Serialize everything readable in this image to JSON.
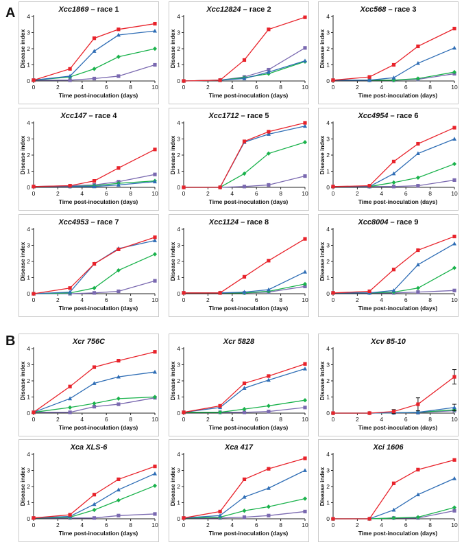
{
  "section_labels": {
    "a": "A",
    "b": "B"
  },
  "colors": {
    "red": "#e8232b",
    "blue": "#2e6db5",
    "green": "#19b24b",
    "purple": "#7a69b0"
  },
  "chart_data": [
    {
      "type": "line",
      "panel": "A",
      "title_italic": "Xcc1869",
      "title_rest": " – race 1",
      "xlabel": "Time post-inoculation (days)",
      "ylabel": "Disease index",
      "xlim": [
        0,
        10
      ],
      "ylim": [
        0,
        4
      ],
      "x": [
        0,
        3,
        5,
        7,
        10
      ],
      "series": [
        {
          "color": "red",
          "marker": "square",
          "values": [
            0.05,
            0.75,
            2.65,
            3.2,
            3.55
          ]
        },
        {
          "color": "blue",
          "marker": "triangle",
          "values": [
            0.05,
            0.3,
            1.85,
            2.85,
            3.1
          ]
        },
        {
          "color": "green",
          "marker": "diamond",
          "values": [
            0.05,
            0.25,
            0.75,
            1.5,
            2.0
          ]
        },
        {
          "color": "purple",
          "marker": "square",
          "values": [
            0.05,
            0.05,
            0.15,
            0.3,
            1.0
          ]
        }
      ]
    },
    {
      "type": "line",
      "panel": "A",
      "title_italic": "Xcc12824",
      "title_rest": " – race 2",
      "xlabel": "Time post-inoculation (days)",
      "ylabel": "Disease index",
      "xlim": [
        0,
        10
      ],
      "ylim": [
        0,
        4
      ],
      "x": [
        0,
        3,
        5,
        7,
        10
      ],
      "series": [
        {
          "color": "red",
          "marker": "square",
          "values": [
            0,
            0.05,
            1.3,
            3.2,
            3.95
          ]
        },
        {
          "color": "blue",
          "marker": "triangle",
          "values": [
            0,
            0.05,
            0.15,
            0.55,
            1.25
          ]
        },
        {
          "color": "green",
          "marker": "diamond",
          "values": [
            0,
            0.05,
            0.2,
            0.45,
            1.2
          ]
        },
        {
          "color": "purple",
          "marker": "square",
          "values": [
            0,
            0.05,
            0.25,
            0.7,
            2.05
          ]
        }
      ]
    },
    {
      "type": "line",
      "panel": "A",
      "title_italic": "Xcc568",
      "title_rest": " – race 3",
      "xlabel": "Time post-inoculation (days)",
      "ylabel": "Disease index",
      "xlim": [
        0,
        10
      ],
      "ylim": [
        0,
        4
      ],
      "x": [
        0,
        3,
        5,
        7,
        10
      ],
      "series": [
        {
          "color": "red",
          "marker": "square",
          "values": [
            0.05,
            0.25,
            1.0,
            2.15,
            3.25
          ]
        },
        {
          "color": "blue",
          "marker": "triangle",
          "values": [
            0.05,
            0.05,
            0.2,
            1.1,
            2.05
          ]
        },
        {
          "color": "green",
          "marker": "diamond",
          "values": [
            0.05,
            0.05,
            0.05,
            0.15,
            0.55
          ]
        },
        {
          "color": "purple",
          "marker": "square",
          "values": [
            0.05,
            0.05,
            0.05,
            0.1,
            0.45
          ]
        }
      ]
    },
    {
      "type": "line",
      "panel": "A",
      "title_italic": "Xcc147",
      "title_rest": " – race 4",
      "xlabel": "Time post-inoculation (days)",
      "ylabel": "Disease index",
      "xlim": [
        0,
        10
      ],
      "ylim": [
        0,
        4
      ],
      "x": [
        0,
        3,
        5,
        7,
        10
      ],
      "series": [
        {
          "color": "red",
          "marker": "square",
          "values": [
            0.05,
            0.1,
            0.4,
            1.2,
            2.35
          ]
        },
        {
          "color": "blue",
          "marker": "triangle",
          "values": [
            0.05,
            0.05,
            0.05,
            0.15,
            0.35
          ]
        },
        {
          "color": "green",
          "marker": "diamond",
          "values": [
            0.05,
            0.05,
            0.1,
            0.25,
            0.4
          ]
        },
        {
          "color": "purple",
          "marker": "square",
          "values": [
            0.05,
            0.1,
            0.15,
            0.35,
            0.8
          ]
        }
      ]
    },
    {
      "type": "line",
      "panel": "A",
      "title_italic": "Xcc1712",
      "title_rest": " – race 5",
      "xlabel": "Time post-inoculation (days)",
      "ylabel": "Disease index",
      "xlim": [
        0,
        10
      ],
      "ylim": [
        0,
        4
      ],
      "x": [
        0,
        3,
        5,
        7,
        10
      ],
      "series": [
        {
          "color": "red",
          "marker": "square",
          "values": [
            0,
            0,
            2.85,
            3.45,
            4.0
          ]
        },
        {
          "color": "blue",
          "marker": "triangle",
          "values": [
            0,
            0,
            2.8,
            3.3,
            3.8
          ]
        },
        {
          "color": "green",
          "marker": "diamond",
          "values": [
            0,
            0,
            0.85,
            2.1,
            2.8
          ]
        },
        {
          "color": "purple",
          "marker": "square",
          "values": [
            0,
            0,
            0.05,
            0.15,
            0.7
          ]
        }
      ]
    },
    {
      "type": "line",
      "panel": "A",
      "title_italic": "Xcc4954",
      "title_rest": " – race 6",
      "xlabel": "Time post-inoculation (days)",
      "ylabel": "Disease index",
      "xlim": [
        0,
        10
      ],
      "ylim": [
        0,
        4
      ],
      "x": [
        0,
        3,
        5,
        7,
        10
      ],
      "series": [
        {
          "color": "red",
          "marker": "square",
          "values": [
            0.05,
            0.1,
            1.6,
            2.7,
            3.7
          ]
        },
        {
          "color": "blue",
          "marker": "triangle",
          "values": [
            0.05,
            0.05,
            0.85,
            2.1,
            3.0
          ]
        },
        {
          "color": "green",
          "marker": "diamond",
          "values": [
            0.05,
            0.05,
            0.3,
            0.6,
            1.45
          ]
        },
        {
          "color": "purple",
          "marker": "square",
          "values": [
            0.05,
            0.05,
            0.05,
            0.1,
            0.45
          ]
        }
      ]
    },
    {
      "type": "line",
      "panel": "A",
      "title_italic": "Xcc4953",
      "title_rest": " – race 7",
      "xlabel": "Time post-inoculation (days)",
      "ylabel": "Disease index",
      "xlim": [
        0,
        10
      ],
      "ylim": [
        0,
        4
      ],
      "x": [
        0,
        3,
        5,
        7,
        10
      ],
      "series": [
        {
          "color": "red",
          "marker": "square",
          "values": [
            0,
            0.35,
            1.85,
            2.75,
            3.5
          ]
        },
        {
          "color": "blue",
          "marker": "triangle",
          "values": [
            0,
            0.1,
            1.85,
            2.8,
            3.3
          ]
        },
        {
          "color": "green",
          "marker": "diamond",
          "values": [
            0,
            0.05,
            0.35,
            1.45,
            2.45
          ]
        },
        {
          "color": "purple",
          "marker": "square",
          "values": [
            0,
            0,
            0.05,
            0.15,
            0.8
          ]
        }
      ]
    },
    {
      "type": "line",
      "panel": "A",
      "title_italic": "Xcc1124",
      "title_rest": " – race 8",
      "xlabel": "Time post-inoculation (days)",
      "ylabel": "Disease index",
      "xlim": [
        0,
        10
      ],
      "ylim": [
        0,
        4
      ],
      "x": [
        0,
        3,
        5,
        7,
        10
      ],
      "series": [
        {
          "color": "red",
          "marker": "square",
          "values": [
            0.05,
            0.05,
            1.05,
            2.05,
            3.4
          ]
        },
        {
          "color": "blue",
          "marker": "triangle",
          "values": [
            0.05,
            0.05,
            0.1,
            0.25,
            1.35
          ]
        },
        {
          "color": "green",
          "marker": "diamond",
          "values": [
            0.05,
            0.05,
            0.05,
            0.15,
            0.6
          ]
        },
        {
          "color": "purple",
          "marker": "square",
          "values": [
            0.05,
            0.05,
            0.05,
            0.1,
            0.45
          ]
        }
      ]
    },
    {
      "type": "line",
      "panel": "A",
      "title_italic": "Xcc8004",
      "title_rest": " – race 9",
      "xlabel": "Time post-inoculation (days)",
      "ylabel": "Disease index",
      "xlim": [
        0,
        10
      ],
      "ylim": [
        0,
        4
      ],
      "x": [
        0,
        3,
        5,
        7,
        10
      ],
      "series": [
        {
          "color": "red",
          "marker": "square",
          "values": [
            0.05,
            0.15,
            1.5,
            2.7,
            3.55
          ]
        },
        {
          "color": "blue",
          "marker": "triangle",
          "values": [
            0.05,
            0.05,
            0.2,
            1.8,
            3.1
          ]
        },
        {
          "color": "green",
          "marker": "diamond",
          "values": [
            0.05,
            0.05,
            0.1,
            0.35,
            1.6
          ]
        },
        {
          "color": "purple",
          "marker": "square",
          "values": [
            0.05,
            0.05,
            0.05,
            0.1,
            0.2
          ]
        }
      ]
    },
    {
      "type": "line",
      "panel": "B",
      "title_italic": "Xcr 756C",
      "title_rest": "",
      "xlabel": "Time post-inoculation (days)",
      "ylabel": "Disease index",
      "xlim": [
        0,
        10
      ],
      "ylim": [
        0,
        4
      ],
      "x": [
        0,
        3,
        5,
        7,
        10
      ],
      "series": [
        {
          "color": "red",
          "marker": "square",
          "values": [
            0.05,
            1.65,
            2.85,
            3.25,
            3.8
          ]
        },
        {
          "color": "blue",
          "marker": "triangle",
          "values": [
            0.05,
            0.9,
            1.85,
            2.25,
            2.55
          ]
        },
        {
          "color": "green",
          "marker": "diamond",
          "values": [
            0.05,
            0.35,
            0.6,
            0.9,
            1.0
          ]
        },
        {
          "color": "purple",
          "marker": "square",
          "values": [
            0.05,
            0.05,
            0.4,
            0.55,
            0.95
          ]
        }
      ]
    },
    {
      "type": "line",
      "panel": "B",
      "title_italic": "Xcr 5828",
      "title_rest": "",
      "xlabel": "Time post-inoculation (days)",
      "ylabel": "Disease index",
      "xlim": [
        0,
        10
      ],
      "ylim": [
        0,
        4
      ],
      "x": [
        0,
        3,
        5,
        7,
        10
      ],
      "series": [
        {
          "color": "red",
          "marker": "square",
          "values": [
            0.05,
            0.45,
            1.85,
            2.3,
            3.05
          ]
        },
        {
          "color": "blue",
          "marker": "triangle",
          "values": [
            0.05,
            0.35,
            1.55,
            2.05,
            2.75
          ]
        },
        {
          "color": "green",
          "marker": "diamond",
          "values": [
            0.05,
            0.05,
            0.25,
            0.45,
            0.8
          ]
        },
        {
          "color": "purple",
          "marker": "square",
          "values": [
            0.05,
            0.05,
            0.05,
            0.1,
            0.35
          ]
        }
      ]
    },
    {
      "type": "line",
      "panel": "B",
      "title_italic": "Xcv 85-10",
      "title_rest": "",
      "xlabel": "Time post-inoculation (days)",
      "ylabel": "Disease index",
      "xlim": [
        0,
        10
      ],
      "ylim": [
        0,
        4
      ],
      "x": [
        0,
        3,
        5,
        7,
        10
      ],
      "series": [
        {
          "color": "red",
          "marker": "square",
          "values": [
            0,
            0,
            0.1,
            0.55,
            2.25
          ],
          "errors": [
            0,
            0,
            0.12,
            0.4,
            0.45
          ]
        },
        {
          "color": "blue",
          "marker": "triangle",
          "values": [
            0,
            0,
            0.02,
            0.05,
            0.35
          ],
          "errors": [
            0,
            0,
            0,
            0,
            0.2
          ]
        },
        {
          "color": "green",
          "marker": "diamond",
          "values": [
            0,
            0,
            0.02,
            0.05,
            0.2
          ]
        },
        {
          "color": "purple",
          "marker": "square",
          "values": [
            0,
            0,
            0.02,
            0.03,
            0.15
          ]
        }
      ]
    },
    {
      "type": "line",
      "panel": "B",
      "title_italic": "Xca XLS-6",
      "title_rest": "",
      "xlabel": "Time post-inoculation (days)",
      "ylabel": "Disease index",
      "xlim": [
        0,
        10
      ],
      "ylim": [
        0,
        4
      ],
      "x": [
        0,
        3,
        5,
        7,
        10
      ],
      "series": [
        {
          "color": "red",
          "marker": "square",
          "values": [
            0.05,
            0.25,
            1.5,
            2.45,
            3.25
          ]
        },
        {
          "color": "blue",
          "marker": "triangle",
          "values": [
            0.05,
            0.15,
            0.9,
            1.8,
            2.8
          ]
        },
        {
          "color": "green",
          "marker": "diamond",
          "values": [
            0.05,
            0.1,
            0.55,
            1.15,
            2.05
          ]
        },
        {
          "color": "purple",
          "marker": "square",
          "values": [
            0.05,
            0.05,
            0.05,
            0.2,
            0.3
          ]
        }
      ]
    },
    {
      "type": "line",
      "panel": "B",
      "title_italic": "Xca 417",
      "title_rest": "",
      "xlabel": "Time post-inoculation (days)",
      "ylabel": "Disease index",
      "xlim": [
        0,
        10
      ],
      "ylim": [
        0,
        4
      ],
      "x": [
        0,
        3,
        5,
        7,
        10
      ],
      "series": [
        {
          "color": "red",
          "marker": "square",
          "values": [
            0.05,
            0.45,
            2.45,
            3.1,
            3.75
          ]
        },
        {
          "color": "blue",
          "marker": "triangle",
          "values": [
            0.05,
            0.2,
            1.35,
            1.9,
            3.0
          ]
        },
        {
          "color": "green",
          "marker": "diamond",
          "values": [
            0.05,
            0.1,
            0.5,
            0.75,
            1.25
          ]
        },
        {
          "color": "purple",
          "marker": "square",
          "values": [
            0.05,
            0.05,
            0.1,
            0.2,
            0.45
          ]
        }
      ]
    },
    {
      "type": "line",
      "panel": "B",
      "title_italic": "Xci 1606",
      "title_rest": "",
      "xlabel": "Time post-inoculation (days)",
      "ylabel": "Disease index",
      "xlim": [
        0,
        10
      ],
      "ylim": [
        0,
        4
      ],
      "x": [
        0,
        3,
        5,
        7,
        10
      ],
      "series": [
        {
          "color": "red",
          "marker": "square",
          "values": [
            0,
            0,
            2.2,
            3.05,
            3.65
          ]
        },
        {
          "color": "blue",
          "marker": "triangle",
          "values": [
            0,
            0,
            0.55,
            1.5,
            2.5
          ]
        },
        {
          "color": "green",
          "marker": "diamond",
          "values": [
            0,
            0,
            0.05,
            0.1,
            0.7
          ]
        },
        {
          "color": "purple",
          "marker": "square",
          "values": [
            0,
            0,
            0.05,
            0.05,
            0.5
          ]
        }
      ]
    }
  ]
}
